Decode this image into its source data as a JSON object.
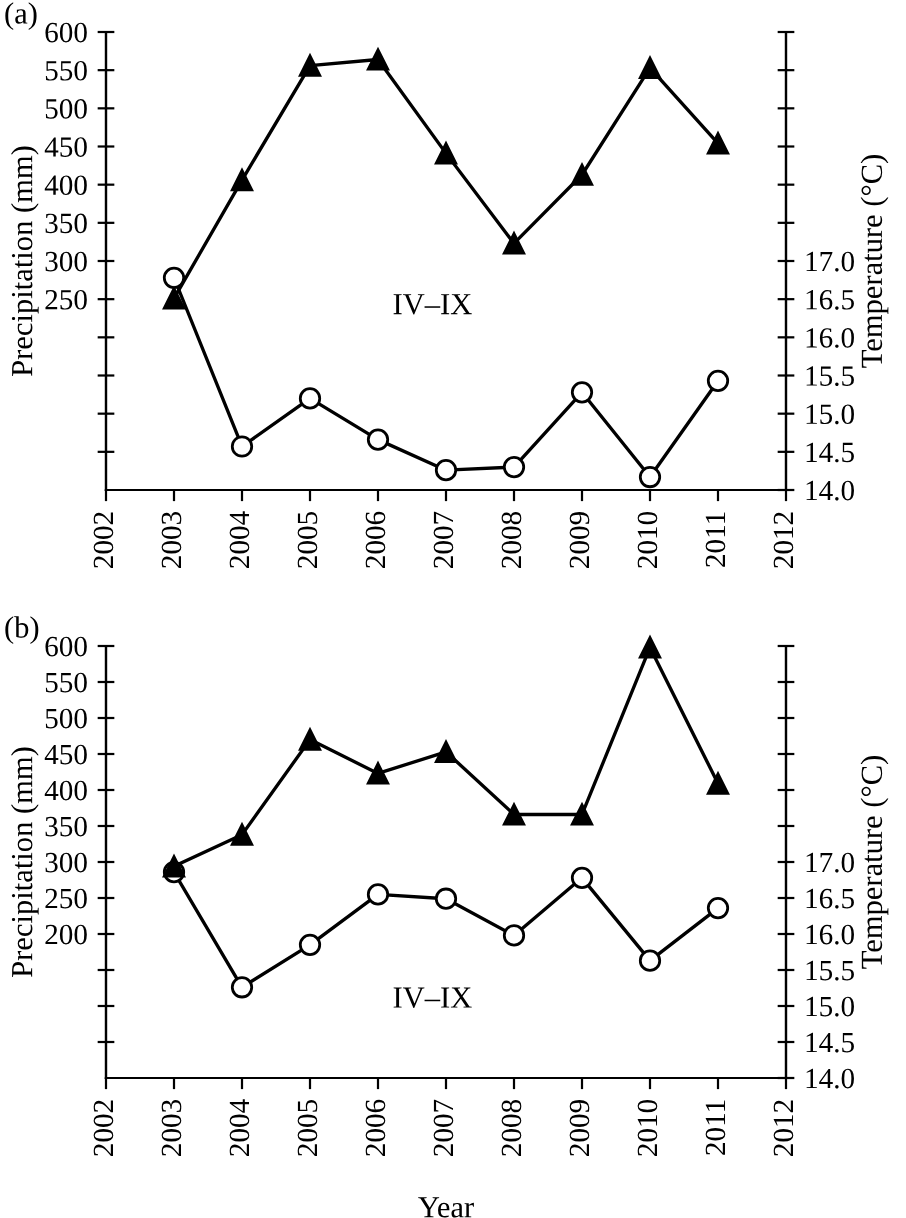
{
  "chart_data": [
    {
      "type": "line",
      "ylabel": "Precipitation (mm)",
      "y2label": "Temperature (°C)",
      "annotations": [
        "(a)",
        "IV–IX"
      ],
      "x": [
        2003,
        2004,
        2005,
        2006,
        2007,
        2008,
        2009,
        2010,
        2011
      ],
      "series": [
        {
          "color": "#000000",
          "marker": "triangle",
          "values": [
            251,
            406,
            556,
            564,
            441,
            323,
            413,
            553,
            454
          ]
        },
        {
          "color": "#000000",
          "marker": "circle",
          "axis": "y2",
          "values": [
            16.78,
            14.57,
            15.2,
            14.66,
            14.26,
            14.3,
            15.28,
            14.17,
            15.43
          ]
        }
      ],
      "xlim": [
        2002,
        2012
      ],
      "xticks": [
        2002,
        2003,
        2004,
        2005,
        2006,
        2007,
        2008,
        2009,
        2010,
        2011,
        2012
      ],
      "ylim": [
        0,
        600
      ],
      "yticks": [
        {
          "value": 50,
          "label": null
        },
        {
          "value": 100,
          "label": null
        },
        {
          "value": 150,
          "label": null
        },
        {
          "value": 200,
          "label": null
        },
        250,
        300,
        350,
        400,
        450,
        500,
        550,
        600
      ],
      "y2lim": [
        14,
        20
      ],
      "y2ticks": [
        {
          "value": 14,
          "label": "14.0"
        },
        14.5,
        {
          "value": 15,
          "label": "15.0"
        },
        15.5,
        {
          "value": 16,
          "label": "16.0"
        },
        16.5,
        {
          "value": 17,
          "label": "17.0"
        },
        {
          "value": 17.5,
          "label": null
        },
        {
          "value": 18,
          "label": null
        },
        {
          "value": 18.5,
          "label": null
        },
        {
          "value": 19,
          "label": null
        },
        {
          "value": 19.5,
          "label": null
        },
        {
          "value": 20,
          "label": null
        }
      ],
      "line_style": "solid",
      "grid": false,
      "legend": false
    },
    {
      "type": "line",
      "xlabel": "Year",
      "ylabel": "Precipitation (mm)",
      "y2label": "Temperature (°C)",
      "annotations": [
        "(b)",
        "IV–IX"
      ],
      "x": [
        2003,
        2004,
        2005,
        2006,
        2007,
        2008,
        2009,
        2010,
        2011
      ],
      "series": [
        {
          "color": "#000000",
          "marker": "triangle",
          "values": [
            294,
            338,
            470,
            423,
            453,
            366,
            366,
            598,
            409
          ]
        },
        {
          "color": "#000000",
          "marker": "circle",
          "axis": "y2",
          "values": [
            16.86,
            15.26,
            15.85,
            16.55,
            16.49,
            15.98,
            16.78,
            15.63,
            16.36
          ]
        }
      ],
      "xlim": [
        2002,
        2012
      ],
      "xticks": [
        2002,
        2003,
        2004,
        2005,
        2006,
        2007,
        2008,
        2009,
        2010,
        2011,
        2012
      ],
      "ylim": [
        0,
        600
      ],
      "yticks": [
        {
          "value": 50,
          "label": null
        },
        {
          "value": 100,
          "label": null
        },
        {
          "value": 150,
          "label": null
        },
        200,
        250,
        300,
        350,
        400,
        450,
        500,
        550,
        600
      ],
      "y2lim": [
        14,
        20
      ],
      "y2ticks": [
        {
          "value": 14,
          "label": "14.0"
        },
        14.5,
        {
          "value": 15,
          "label": "15.0"
        },
        15.5,
        {
          "value": 16,
          "label": "16.0"
        },
        16.5,
        {
          "value": 17,
          "label": "17.0"
        },
        {
          "value": 17.5,
          "label": null
        },
        {
          "value": 18,
          "label": null
        },
        {
          "value": 18.5,
          "label": null
        },
        {
          "value": 19,
          "label": null
        },
        {
          "value": 19.5,
          "label": null
        },
        {
          "value": 20,
          "label": null
        }
      ],
      "line_style": "solid",
      "grid": false,
      "legend": false
    }
  ]
}
